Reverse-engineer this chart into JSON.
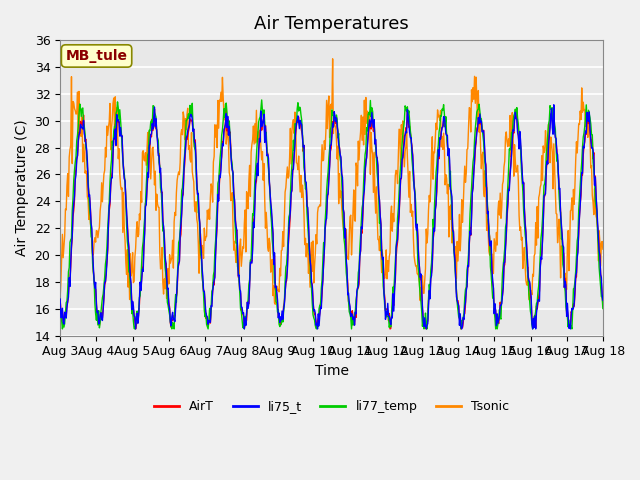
{
  "title": "Air Temperatures",
  "xlabel": "Time",
  "ylabel": "Air Temperature (C)",
  "ylim": [
    14,
    36
  ],
  "yticks": [
    14,
    16,
    18,
    20,
    22,
    24,
    26,
    28,
    30,
    32,
    34,
    36
  ],
  "x_labels": [
    "Aug 3",
    "Aug 4",
    "Aug 5",
    "Aug 6",
    "Aug 7",
    "Aug 8",
    "Aug 9",
    "Aug 10",
    "Aug 11",
    "Aug 12",
    "Aug 13",
    "Aug 14",
    "Aug 15",
    "Aug 16",
    "Aug 17",
    "Aug 18"
  ],
  "annotation_text": "MB_tule",
  "annotation_color": "#8B0000",
  "annotation_bg": "#FFFFCC",
  "series_colors": {
    "AirT": "#FF0000",
    "li75_t": "#0000FF",
    "li77_temp": "#00CC00",
    "Tsonic": "#FF8800"
  },
  "background_color": "#E8E8E8",
  "grid_color": "#FFFFFF",
  "title_fontsize": 13,
  "axis_fontsize": 10,
  "tick_fontsize": 9,
  "legend_fontsize": 9
}
